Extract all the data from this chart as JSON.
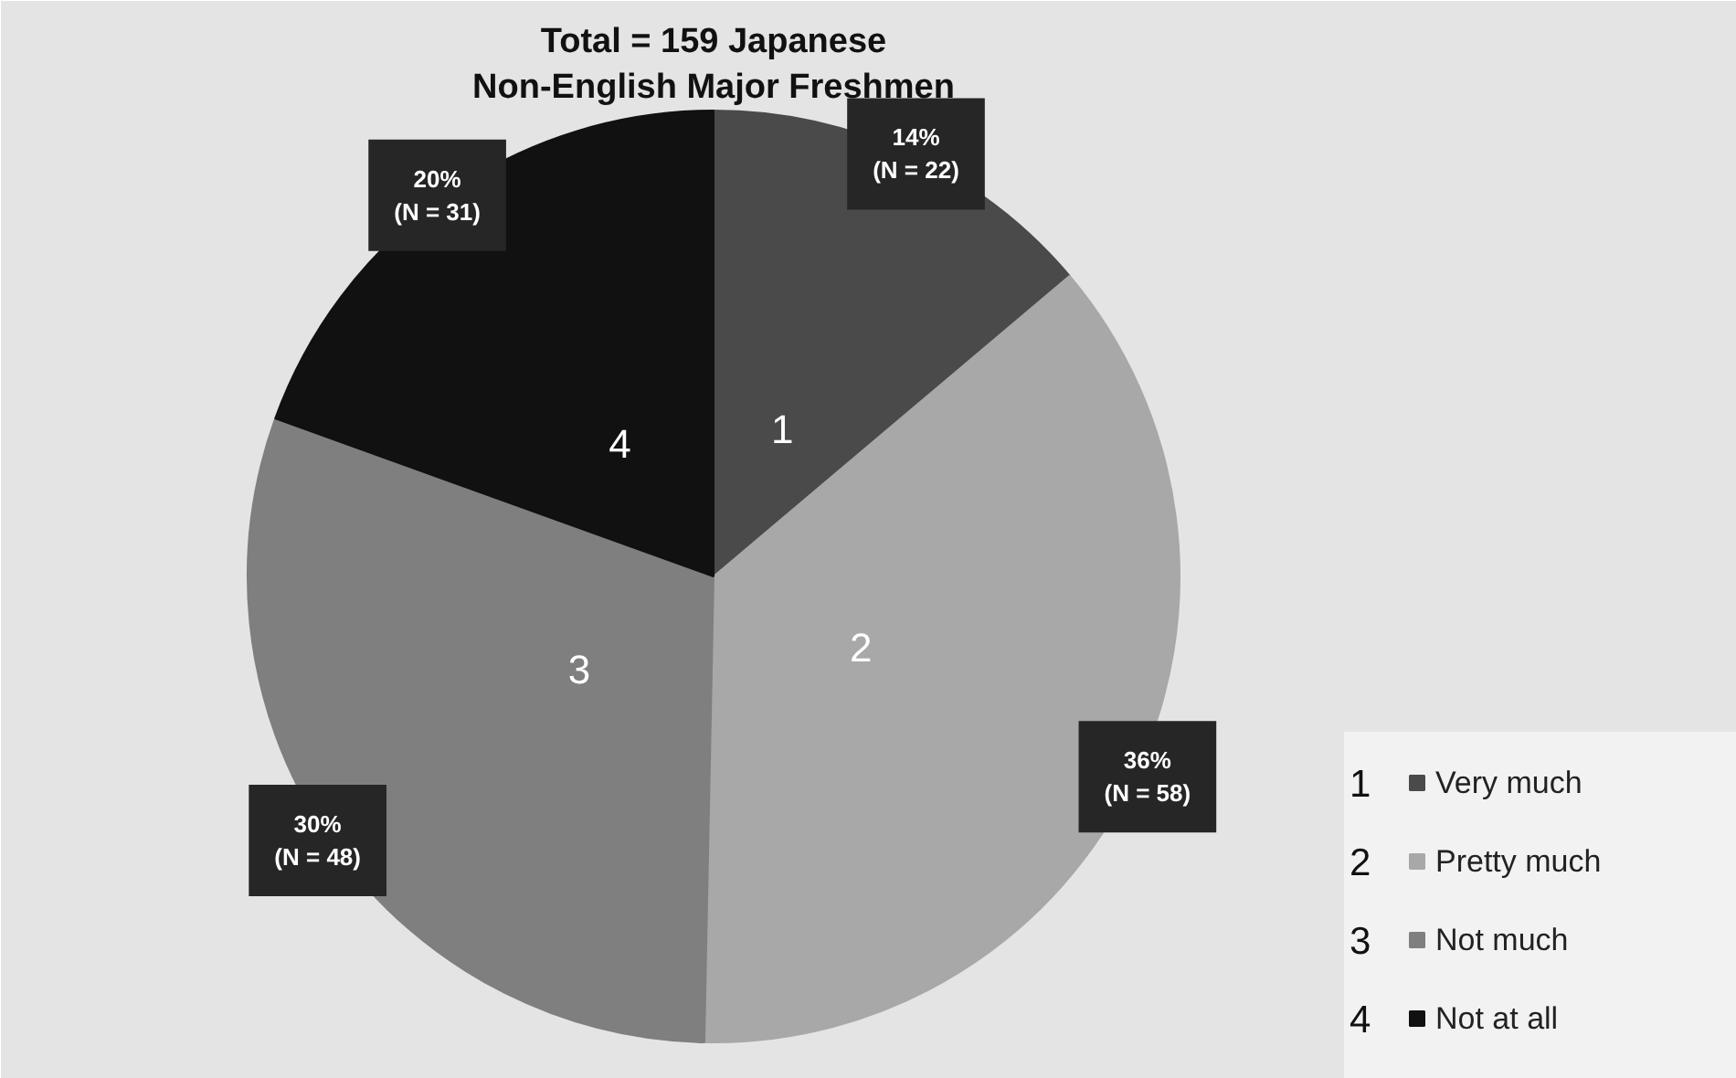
{
  "chart_data": {
    "type": "pie",
    "title": "Total = 159 Japanese\nNon-English Major Freshmen",
    "categories": [
      "Very much",
      "Pretty much",
      "Not much",
      "Not at all"
    ],
    "values": [
      22,
      58,
      48,
      31
    ],
    "colors": [
      "#4a4a4a",
      "#a8a8a8",
      "#7f7f7f",
      "#111111"
    ],
    "value_labels": [
      "14%\n(N = 22)",
      "36%\n(N = 58)",
      "30%\n(N = 48)",
      "20%\n(N = 31)"
    ],
    "annotations": [
      "1",
      "2",
      "3",
      "4"
    ],
    "legend": "bottom right"
  }
}
